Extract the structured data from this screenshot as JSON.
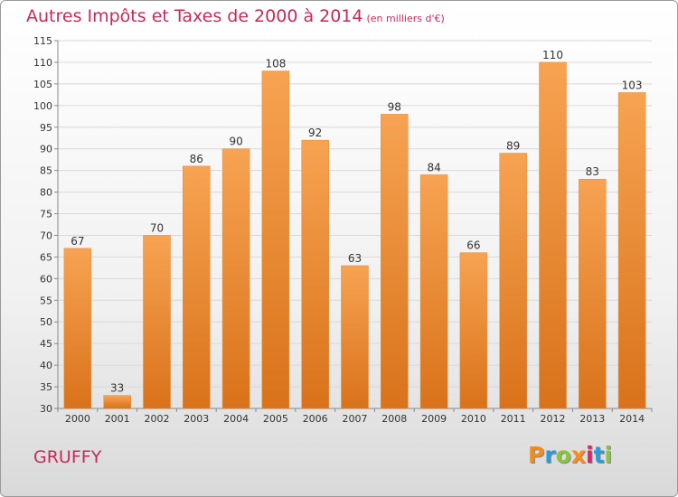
{
  "header": {
    "title": "Autres Impôts et Taxes de 2000 à 2014",
    "subtitle": "(en milliers d'€)"
  },
  "footer": {
    "commune": "GRUFFY",
    "logo": "Proxiti"
  },
  "colors": {
    "title": "#c8285a",
    "bar_top": "#f7a352",
    "bar_bottom": "#d9721a",
    "logo_letters": [
      "#f28c1c",
      "#2f9ad6",
      "#8ac53e",
      "#ff8a1a",
      "#d22a6a",
      "#2f9ad6",
      "#8ac53e"
    ]
  },
  "chart_data": {
    "type": "bar",
    "title": "Autres Impôts et Taxes de 2000 à 2014",
    "xlabel": "",
    "ylabel": "",
    "categories": [
      "2000",
      "2001",
      "2002",
      "2003",
      "2004",
      "2005",
      "2006",
      "2007",
      "2008",
      "2009",
      "2010",
      "2011",
      "2012",
      "2013",
      "2014"
    ],
    "values": [
      67,
      33,
      70,
      86,
      90,
      108,
      92,
      63,
      98,
      84,
      66,
      89,
      110,
      83,
      103
    ],
    "ylim": [
      30,
      115
    ],
    "yticks": [
      30,
      35,
      40,
      45,
      50,
      55,
      60,
      65,
      70,
      75,
      80,
      85,
      90,
      95,
      100,
      105,
      110,
      115
    ],
    "grid": true,
    "data_labels": true
  }
}
